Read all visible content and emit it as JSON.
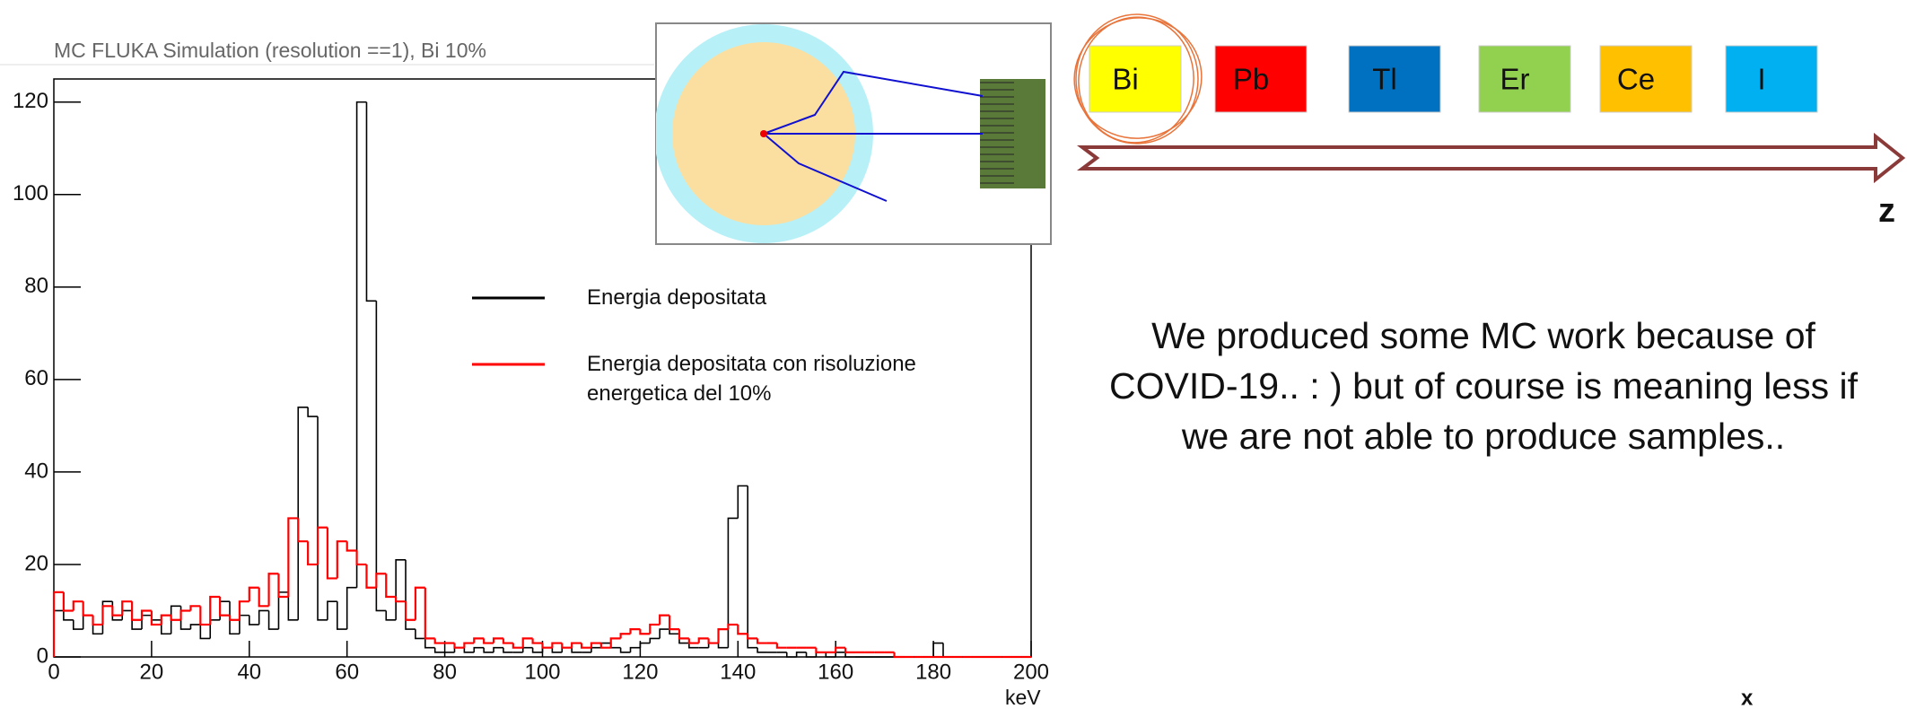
{
  "chart_data": {
    "type": "histogram",
    "title": "MC FLUKA Simulation (resolution ==1), Bi 10%",
    "x_label": "keV",
    "bins": [
      0,
      2,
      4,
      6,
      8,
      10,
      12,
      14,
      16,
      18,
      20,
      22,
      24,
      26,
      28,
      30,
      32,
      34,
      36,
      38,
      40,
      42,
      44,
      46,
      48,
      50,
      52,
      54,
      56,
      58,
      60,
      62,
      64,
      66,
      68,
      70,
      72,
      74,
      76,
      78,
      80,
      82,
      84,
      86,
      88,
      90,
      92,
      94,
      96,
      98,
      100,
      102,
      104,
      106,
      108,
      110,
      112,
      114,
      116,
      118,
      120,
      122,
      124,
      126,
      128,
      130,
      132,
      134,
      136,
      138,
      140,
      142,
      144,
      146,
      148,
      150,
      152,
      154,
      156,
      158,
      160,
      162,
      164,
      166,
      168,
      170,
      172,
      174,
      176,
      178,
      180,
      182,
      184,
      186,
      188,
      190,
      192,
      194,
      196,
      198,
      200
    ],
    "series": [
      {
        "name": "Energia depositata",
        "color": "#000000",
        "values": [
          10,
          8,
          6,
          9,
          5,
          12,
          8,
          10,
          6,
          9,
          8,
          5,
          11,
          6,
          7,
          4,
          8,
          12,
          5,
          9,
          7,
          10,
          6,
          14,
          8,
          54,
          52,
          8,
          12,
          6,
          15,
          120,
          77,
          10,
          8,
          21,
          6,
          4,
          2,
          1,
          1,
          2,
          1,
          2,
          1,
          2,
          1,
          1,
          2,
          1,
          2,
          1,
          2,
          1,
          1,
          2,
          3,
          2,
          1,
          2,
          3,
          4,
          6,
          5,
          3,
          2,
          2,
          3,
          2,
          30,
          37,
          2,
          1,
          1,
          1,
          0,
          1,
          0,
          1,
          0,
          1,
          0,
          0,
          0,
          0,
          0,
          0,
          0,
          0,
          0,
          3,
          0,
          0,
          0,
          0,
          0,
          0,
          0,
          0,
          0
        ]
      },
      {
        "name": "Energia depositata con risoluzione energetica del 10%",
        "color": "#ff0000",
        "values": [
          14,
          10,
          12,
          9,
          7,
          11,
          9,
          12,
          8,
          10,
          7,
          9,
          8,
          10,
          11,
          7,
          13,
          9,
          8,
          12,
          15,
          11,
          18,
          13,
          30,
          25,
          20,
          28,
          17,
          25,
          23,
          20,
          15,
          18,
          13,
          12,
          8,
          15,
          4,
          3,
          3,
          2,
          3,
          4,
          3,
          4,
          3,
          2,
          4,
          3,
          2,
          3,
          2,
          3,
          2,
          3,
          2,
          4,
          5,
          6,
          5,
          7,
          9,
          6,
          4,
          3,
          4,
          3,
          6,
          7,
          5,
          4,
          3,
          3,
          2,
          2,
          2,
          2,
          1,
          1,
          2,
          1,
          1,
          1,
          1,
          1,
          0,
          0,
          0,
          0,
          0,
          0,
          0,
          0,
          0,
          0,
          0,
          0,
          0,
          0
        ]
      }
    ],
    "xlim": [
      0,
      200
    ],
    "ylim": [
      0,
      125
    ],
    "xticks": [
      0,
      20,
      40,
      60,
      80,
      100,
      120,
      140,
      160,
      180,
      200
    ],
    "yticks": [
      0,
      20,
      40,
      60,
      80,
      100,
      120
    ]
  },
  "slide": {
    "elements": [
      {
        "label": "Bi",
        "color": "#ffff00"
      },
      {
        "label": "Pb",
        "color": "#ff0000"
      },
      {
        "label": "Tl",
        "color": "#0070c0"
      },
      {
        "label": "Er",
        "color": "#92d050"
      },
      {
        "label": "Ce",
        "color": "#ffc000"
      },
      {
        "label": "I",
        "color": "#00b0f0"
      }
    ],
    "axis_label": "z",
    "text": "We produced some MC work because of COVID-19.. : ) but of course is meaning less if we are not able to produce samples..",
    "corner_mark": "x"
  }
}
